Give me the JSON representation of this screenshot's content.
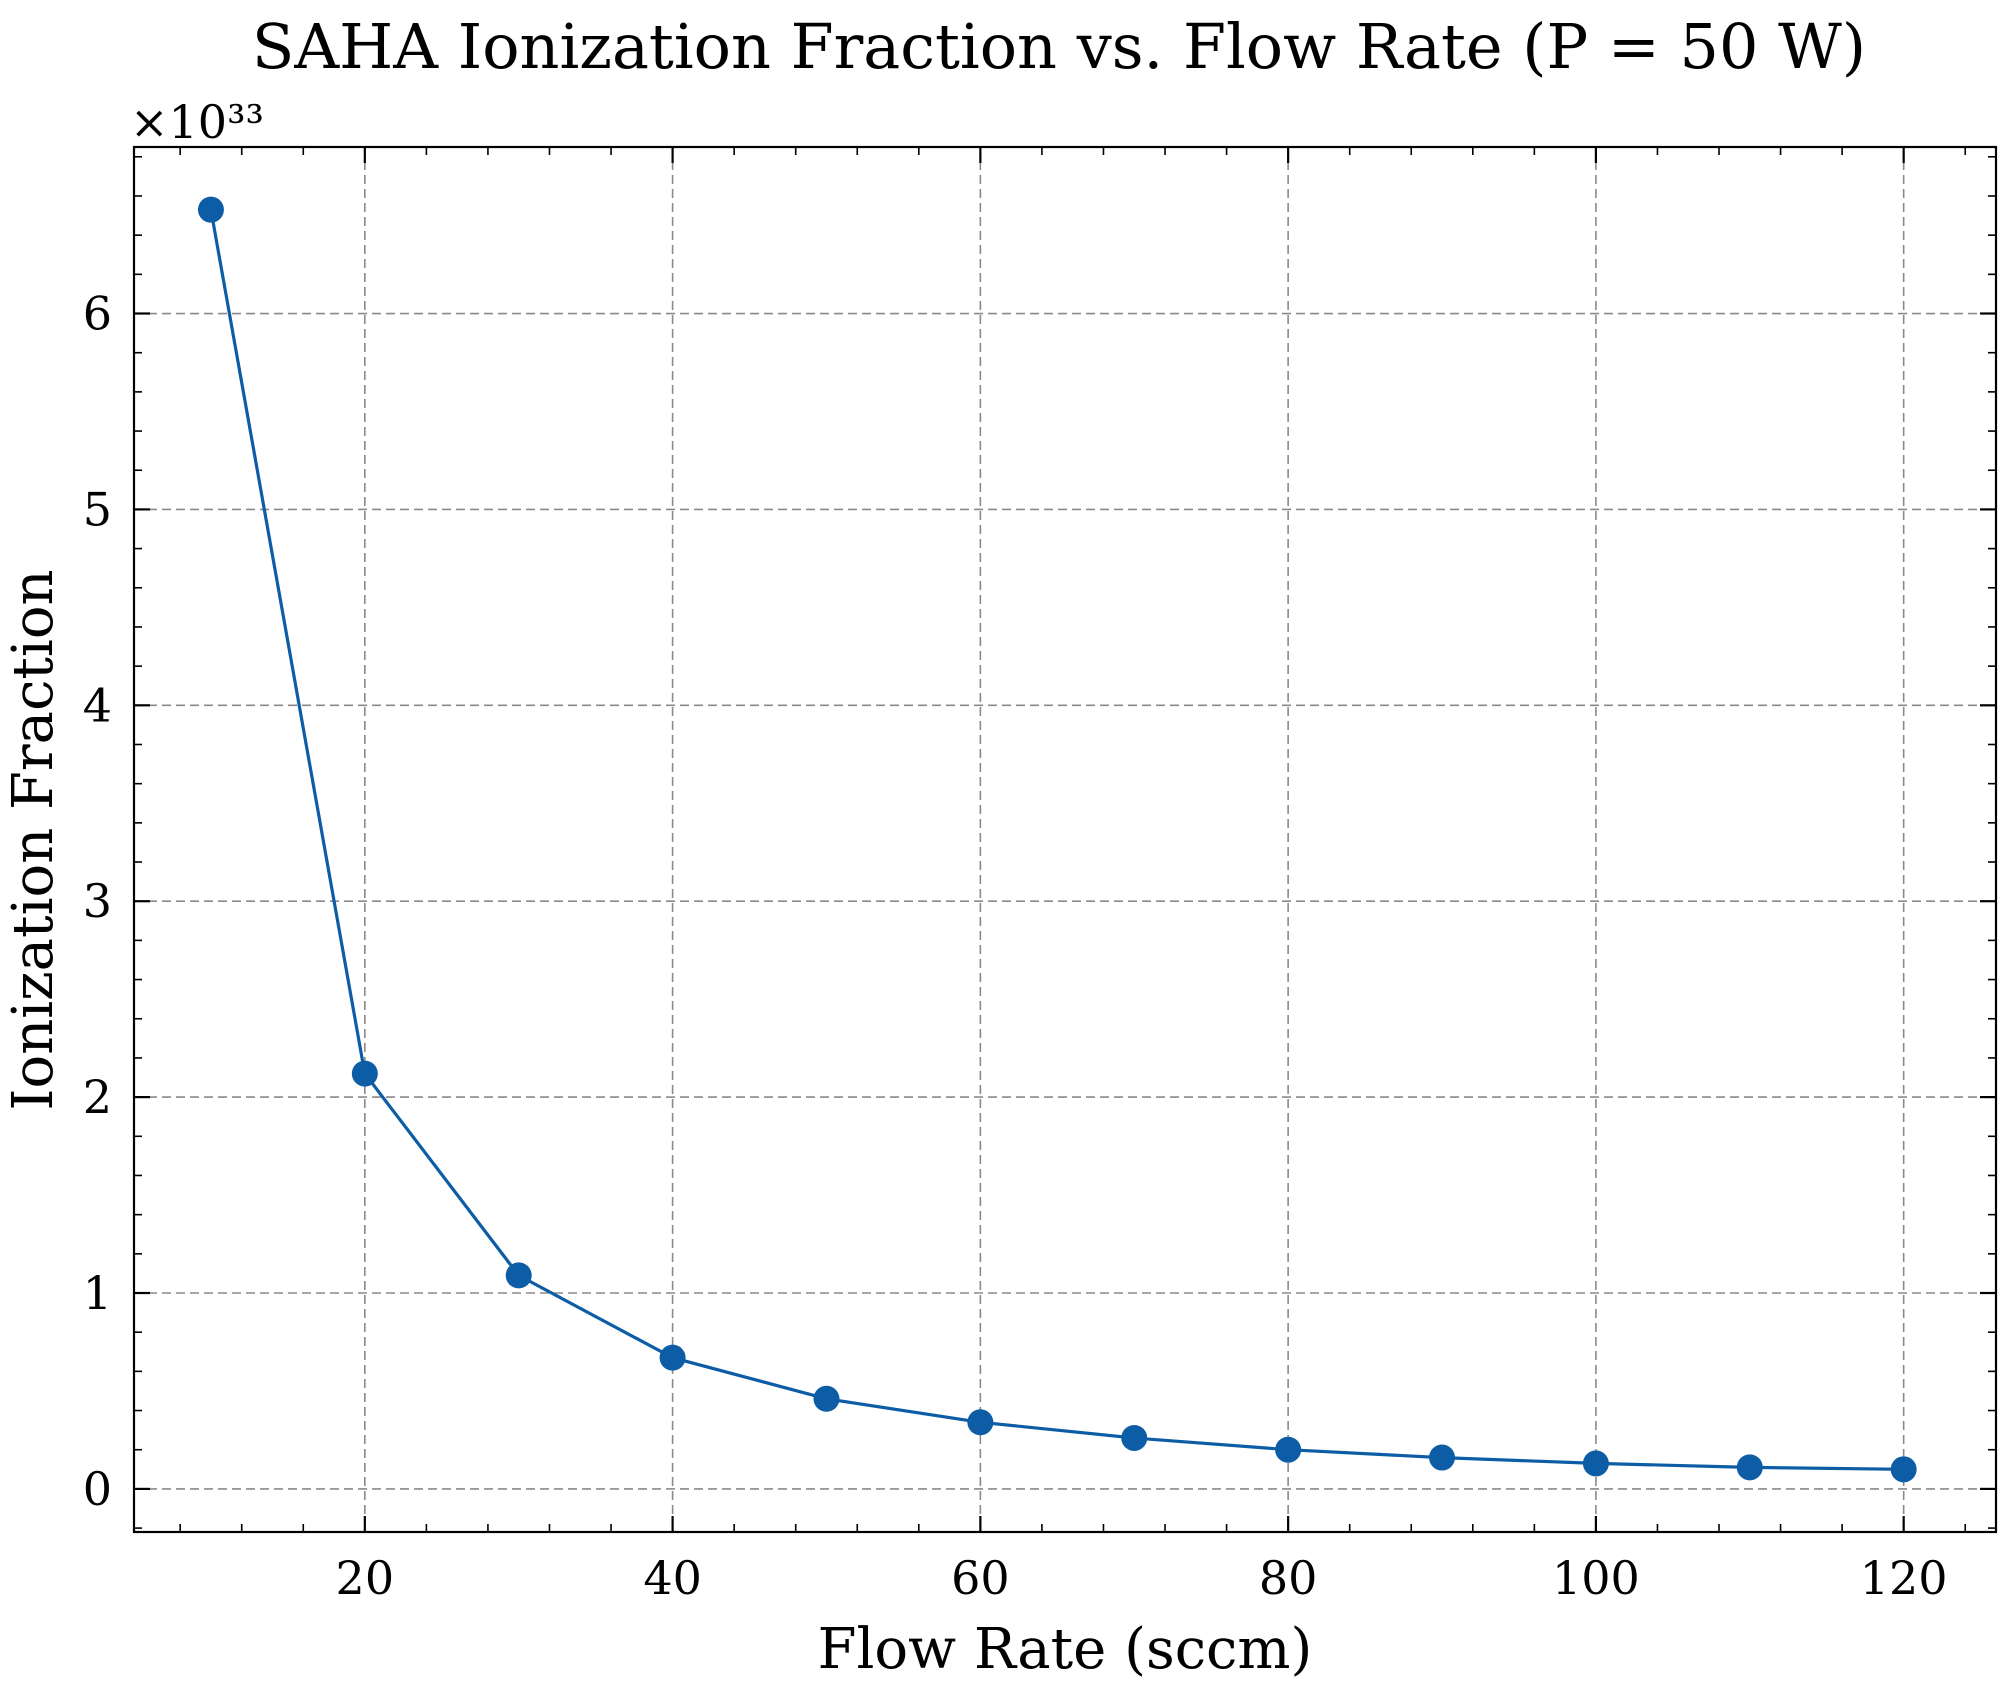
{
  "chart_data": {
    "type": "line",
    "title": "SAHA Ionization Fraction vs. Flow Rate (P = 50 W)",
    "xlabel": "Flow Rate (sccm)",
    "ylabel": "Ionization Fraction",
    "y_offset_label": "×10³³",
    "x": [
      10,
      20,
      30,
      40,
      50,
      60,
      70,
      80,
      90,
      100,
      110,
      120
    ],
    "series": [
      {
        "values": [
          6.53,
          2.12,
          1.09,
          0.67,
          0.46,
          0.34,
          0.26,
          0.2,
          0.16,
          0.13,
          0.11,
          0.1
        ],
        "color": "#0c5da5",
        "marker": "circle"
      }
    ],
    "xlim": [
      5,
      126
    ],
    "ylim": [
      -0.22,
      6.85
    ],
    "xticks": [
      20,
      40,
      60,
      80,
      100,
      120
    ],
    "xtick_labels": [
      "20",
      "40",
      "60",
      "80",
      "100",
      "120"
    ],
    "yticks": [
      0,
      1,
      2,
      3,
      4,
      5,
      6
    ],
    "ytick_labels": [
      "0",
      "1",
      "2",
      "3",
      "4",
      "5",
      "6"
    ],
    "grid": true,
    "legend": "none"
  }
}
